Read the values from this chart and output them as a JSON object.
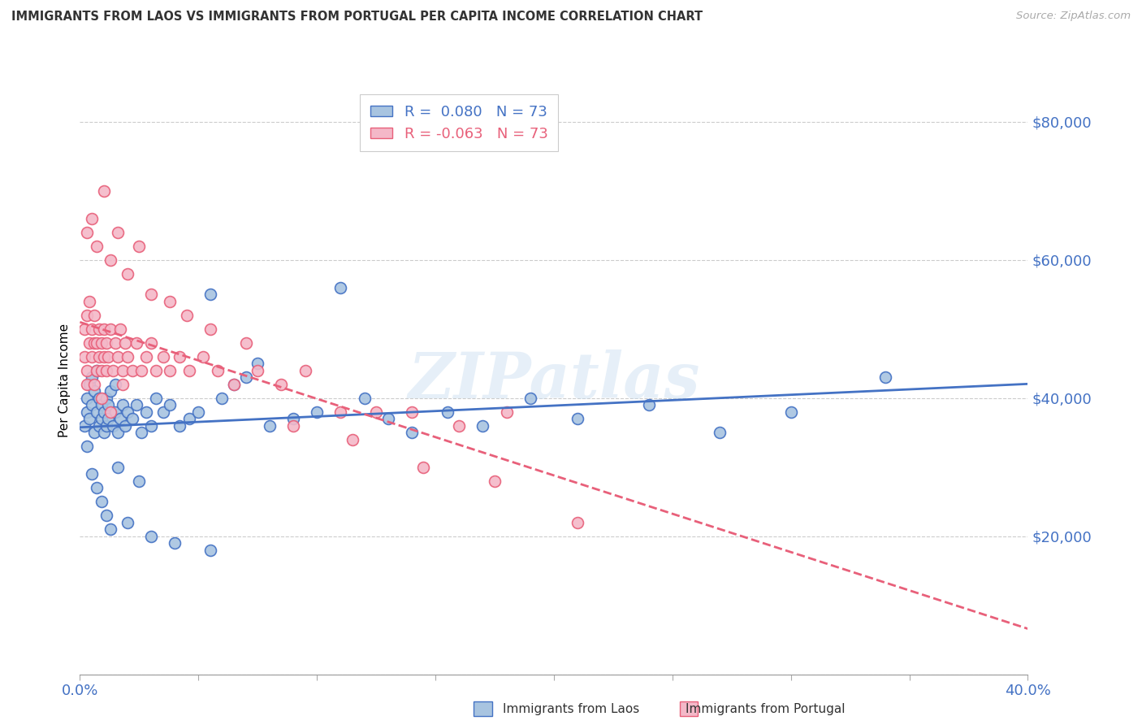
{
  "title": "IMMIGRANTS FROM LAOS VS IMMIGRANTS FROM PORTUGAL PER CAPITA INCOME CORRELATION CHART",
  "source": "Source: ZipAtlas.com",
  "ylabel": "Per Capita Income",
  "yticks": [
    0,
    20000,
    40000,
    60000,
    80000
  ],
  "ytick_labels": [
    "",
    "$20,000",
    "$40,000",
    "$60,000",
    "$80,000"
  ],
  "xlim": [
    0.0,
    0.4
  ],
  "ylim": [
    0,
    85000
  ],
  "r_laos": 0.08,
  "n_laos": 73,
  "r_portugal": -0.063,
  "n_portugal": 73,
  "color_laos": "#a8c4e0",
  "color_portugal": "#f4b8c8",
  "line_color_laos": "#4472c4",
  "line_color_portugal": "#e8607a",
  "watermark": "ZIPatlas",
  "legend_label_laos": "Immigrants from Laos",
  "legend_label_portugal": "Immigrants from Portugal",
  "laos_x": [
    0.002,
    0.003,
    0.003,
    0.004,
    0.004,
    0.005,
    0.005,
    0.006,
    0.006,
    0.007,
    0.007,
    0.008,
    0.008,
    0.009,
    0.009,
    0.01,
    0.01,
    0.011,
    0.011,
    0.012,
    0.012,
    0.013,
    0.014,
    0.015,
    0.015,
    0.016,
    0.017,
    0.018,
    0.019,
    0.02,
    0.022,
    0.024,
    0.026,
    0.028,
    0.03,
    0.032,
    0.035,
    0.038,
    0.042,
    0.046,
    0.05,
    0.055,
    0.06,
    0.065,
    0.07,
    0.08,
    0.09,
    0.1,
    0.11,
    0.12,
    0.13,
    0.14,
    0.155,
    0.17,
    0.19,
    0.21,
    0.24,
    0.27,
    0.3,
    0.34,
    0.003,
    0.005,
    0.007,
    0.009,
    0.011,
    0.013,
    0.016,
    0.02,
    0.025,
    0.03,
    0.04,
    0.055,
    0.075
  ],
  "laos_y": [
    36000,
    38000,
    40000,
    42000,
    37000,
    39000,
    43000,
    41000,
    35000,
    44000,
    38000,
    36000,
    40000,
    37000,
    39000,
    35000,
    38000,
    36000,
    40000,
    37000,
    39000,
    41000,
    36000,
    38000,
    42000,
    35000,
    37000,
    39000,
    36000,
    38000,
    37000,
    39000,
    35000,
    38000,
    36000,
    40000,
    38000,
    39000,
    36000,
    37000,
    38000,
    55000,
    40000,
    42000,
    43000,
    36000,
    37000,
    38000,
    56000,
    40000,
    37000,
    35000,
    38000,
    36000,
    40000,
    37000,
    39000,
    35000,
    38000,
    43000,
    33000,
    29000,
    27000,
    25000,
    23000,
    21000,
    30000,
    22000,
    28000,
    20000,
    19000,
    18000,
    45000
  ],
  "portugal_x": [
    0.002,
    0.002,
    0.003,
    0.003,
    0.004,
    0.004,
    0.005,
    0.005,
    0.006,
    0.006,
    0.007,
    0.007,
    0.008,
    0.008,
    0.009,
    0.009,
    0.01,
    0.01,
    0.011,
    0.011,
    0.012,
    0.013,
    0.014,
    0.015,
    0.016,
    0.017,
    0.018,
    0.019,
    0.02,
    0.022,
    0.024,
    0.026,
    0.028,
    0.03,
    0.032,
    0.035,
    0.038,
    0.042,
    0.046,
    0.052,
    0.058,
    0.065,
    0.075,
    0.085,
    0.095,
    0.11,
    0.125,
    0.14,
    0.16,
    0.18,
    0.003,
    0.005,
    0.007,
    0.01,
    0.013,
    0.016,
    0.02,
    0.025,
    0.03,
    0.038,
    0.045,
    0.055,
    0.07,
    0.09,
    0.115,
    0.145,
    0.175,
    0.21,
    0.003,
    0.006,
    0.009,
    0.013,
    0.018
  ],
  "portugal_y": [
    50000,
    46000,
    52000,
    44000,
    48000,
    54000,
    46000,
    50000,
    48000,
    52000,
    44000,
    48000,
    46000,
    50000,
    44000,
    48000,
    46000,
    50000,
    44000,
    48000,
    46000,
    50000,
    44000,
    48000,
    46000,
    50000,
    44000,
    48000,
    46000,
    44000,
    48000,
    44000,
    46000,
    48000,
    44000,
    46000,
    44000,
    46000,
    44000,
    46000,
    44000,
    42000,
    44000,
    42000,
    44000,
    38000,
    38000,
    38000,
    36000,
    38000,
    64000,
    66000,
    62000,
    70000,
    60000,
    64000,
    58000,
    62000,
    55000,
    54000,
    52000,
    50000,
    48000,
    36000,
    34000,
    30000,
    28000,
    22000,
    42000,
    42000,
    40000,
    38000,
    42000
  ]
}
